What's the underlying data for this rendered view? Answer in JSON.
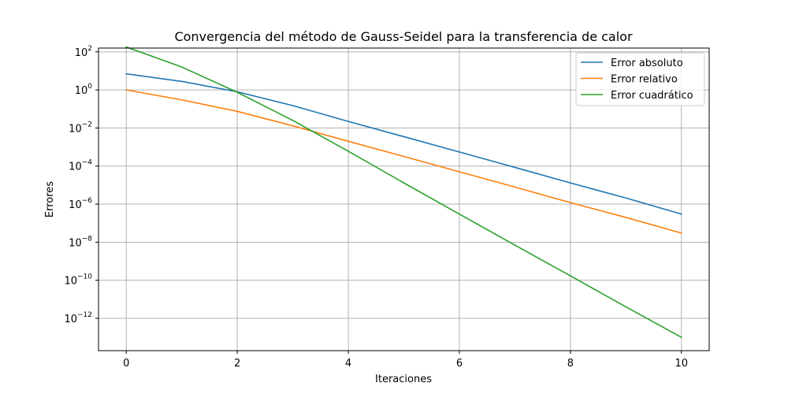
{
  "chart_data": {
    "type": "line",
    "title": "Convergencia del método de Gauss-Seidel para la transferencia de calor",
    "xlabel": "Iteraciones",
    "ylabel": "Errores",
    "x": [
      0,
      1,
      2,
      3,
      4,
      5,
      6,
      7,
      8,
      9,
      10
    ],
    "xlim": [
      -0.5,
      10.5
    ],
    "xticks": [
      0,
      2,
      4,
      6,
      8,
      10
    ],
    "ylog": true,
    "ylim_exp": [
      -13.7,
      2.2
    ],
    "yticks_exp": [
      2,
      0,
      -2,
      -4,
      -6,
      -8,
      -10,
      -12
    ],
    "ytick_base": "10",
    "grid": true,
    "legend_position": "top-right",
    "series": [
      {
        "name": "Error absoluto",
        "color": "#1f77b4",
        "values": [
          7.0,
          2.8,
          0.8,
          0.15,
          0.022,
          0.0035,
          0.00055,
          8.5e-05,
          1.3e-05,
          2.1e-06,
          3e-07
        ]
      },
      {
        "name": "Error relativo",
        "color": "#ff7f0e",
        "values": [
          1.0,
          0.3,
          0.075,
          0.013,
          0.002,
          0.00032,
          5e-05,
          7.9e-06,
          1.2e-06,
          2e-07,
          3e-08
        ]
      },
      {
        "name": "Error cuadrático",
        "color": "#2ca02c",
        "values": [
          180,
          16,
          0.75,
          0.025,
          0.0006,
          1.3e-05,
          3e-07,
          7e-09,
          1.7e-10,
          4e-12,
          1e-13
        ]
      }
    ]
  }
}
